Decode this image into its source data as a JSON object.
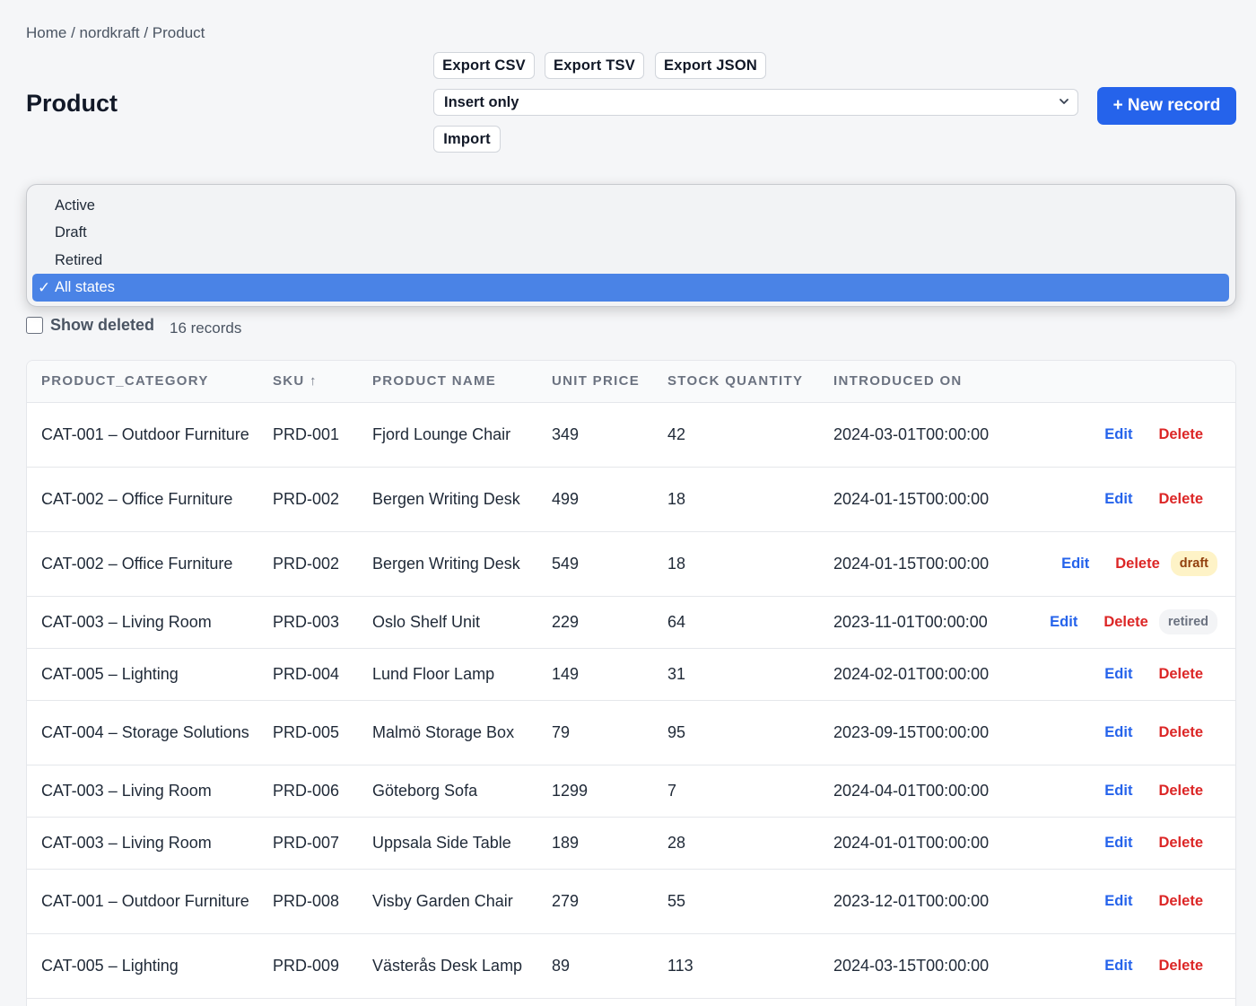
{
  "breadcrumb": {
    "home": "Home",
    "sep": " / ",
    "project": "nordkraft",
    "current": "Product"
  },
  "page_title": "Product",
  "toolbar": {
    "export_csv": "Export CSV",
    "export_tsv": "Export TSV",
    "export_json": "Export JSON",
    "import_mode": "Insert only",
    "import_label": "Import",
    "new_record": "+ New record"
  },
  "state_filter": {
    "options": [
      "Active",
      "Draft",
      "Retired",
      "All states"
    ],
    "selected": "All states",
    "check_glyph": "✓"
  },
  "show_deleted_label": "Show deleted",
  "record_count": "16 records",
  "table": {
    "headers": [
      "PRODUCT_CATEGORY",
      "SKU ↑",
      "PRODUCT NAME",
      "UNIT PRICE",
      "STOCK QUANTITY",
      "INTRODUCED ON"
    ],
    "edit_label": "Edit",
    "delete_label": "Delete",
    "rows": [
      {
        "category": "CAT-001 – Outdoor Furniture",
        "sku": "PRD-001",
        "name": "Fjord Lounge Chair",
        "price": "349",
        "stock": "42",
        "introduced": "2024-03-01T00:00:00",
        "badge": ""
      },
      {
        "category": "CAT-002 – Office Furniture",
        "sku": "PRD-002",
        "name": "Bergen Writing Desk",
        "price": "499",
        "stock": "18",
        "introduced": "2024-01-15T00:00:00",
        "badge": ""
      },
      {
        "category": "CAT-002 – Office Furniture",
        "sku": "PRD-002",
        "name": "Bergen Writing Desk",
        "price": "549",
        "stock": "18",
        "introduced": "2024-01-15T00:00:00",
        "badge": "draft"
      },
      {
        "category": "CAT-003 – Living Room",
        "sku": "PRD-003",
        "name": "Oslo Shelf Unit",
        "price": "229",
        "stock": "64",
        "introduced": "2023-11-01T00:00:00",
        "badge": "retired"
      },
      {
        "category": "CAT-005 – Lighting",
        "sku": "PRD-004",
        "name": "Lund Floor Lamp",
        "price": "149",
        "stock": "31",
        "introduced": "2024-02-01T00:00:00",
        "badge": ""
      },
      {
        "category": "CAT-004 – Storage Solutions",
        "sku": "PRD-005",
        "name": "Malmö Storage Box",
        "price": "79",
        "stock": "95",
        "introduced": "2023-09-15T00:00:00",
        "badge": ""
      },
      {
        "category": "CAT-003 – Living Room",
        "sku": "PRD-006",
        "name": "Göteborg Sofa",
        "price": "1299",
        "stock": "7",
        "introduced": "2024-04-01T00:00:00",
        "badge": ""
      },
      {
        "category": "CAT-003 – Living Room",
        "sku": "PRD-007",
        "name": "Uppsala Side Table",
        "price": "189",
        "stock": "28",
        "introduced": "2024-01-01T00:00:00",
        "badge": ""
      },
      {
        "category": "CAT-001 – Outdoor Furniture",
        "sku": "PRD-008",
        "name": "Visby Garden Chair",
        "price": "279",
        "stock": "55",
        "introduced": "2023-12-01T00:00:00",
        "badge": ""
      },
      {
        "category": "CAT-005 – Lighting",
        "sku": "PRD-009",
        "name": "Västerås Desk Lamp",
        "price": "89",
        "stock": "113",
        "introduced": "2024-03-15T00:00:00",
        "badge": ""
      }
    ]
  },
  "colors": {
    "primary": "#2563eb",
    "delete": "#dc2626",
    "selected_option": "#4a83e6"
  }
}
